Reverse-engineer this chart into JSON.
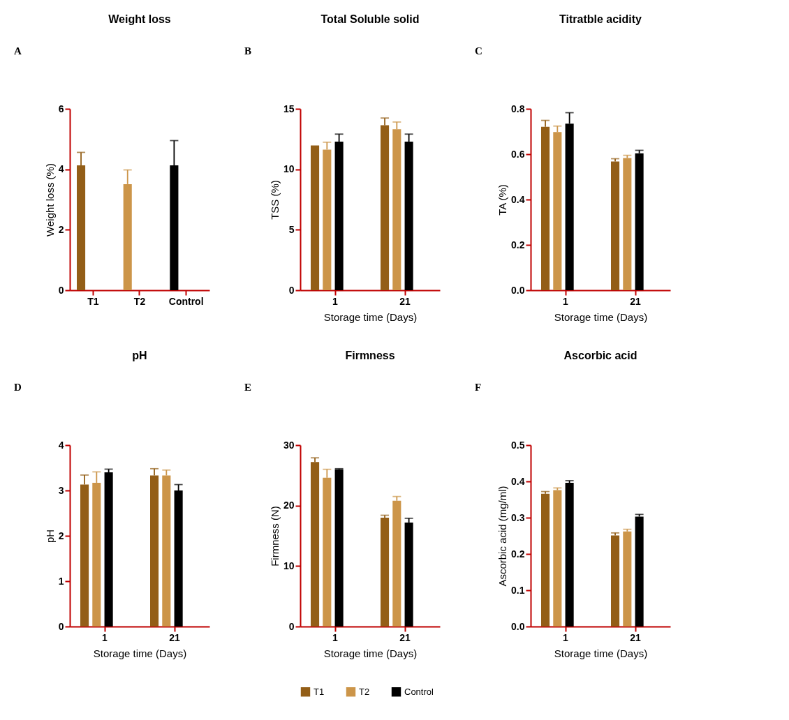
{
  "chart_data": [
    {
      "type": "bar",
      "title": "Weight loss",
      "ylabel": "Weight loss (%)",
      "annotations": [
        "A"
      ],
      "categories": [
        "T1",
        "T2",
        "Control"
      ],
      "values": [
        4.13,
        3.51,
        4.13
      ],
      "colors": [
        "#935e17",
        "#cc9549",
        "#000000"
      ],
      "errors": [
        [
          4.13,
          4.56
        ],
        [
          3.51,
          3.98
        ],
        [
          4.13,
          4.95
        ]
      ],
      "ylim": [
        0,
        6
      ],
      "yticks": [
        0,
        2,
        4,
        6
      ]
    },
    {
      "type": "bar",
      "title": "Total Soluble solid",
      "ylabel": "TSS (%)",
      "xlabel": "Storage time (Days)",
      "annotations": [
        "B"
      ],
      "categories": [
        "1",
        "21"
      ],
      "series": [
        {
          "color": "#935e17",
          "values": [
            11.97,
            13.65
          ],
          "errors": [
            null,
            [
              13.65,
              14.24
            ]
          ]
        },
        {
          "color": "#cc9549",
          "values": [
            11.63,
            13.31
          ],
          "errors": [
            [
              11.63,
              12.24
            ],
            [
              13.31,
              13.91
            ]
          ]
        },
        {
          "color": "#000000",
          "values": [
            12.29,
            12.29
          ],
          "errors": [
            [
              12.29,
              12.91
            ],
            [
              12.29,
              12.91
            ]
          ]
        }
      ],
      "ylim": [
        0,
        15
      ],
      "yticks": [
        0,
        5,
        10,
        15
      ]
    },
    {
      "type": "bar",
      "title": "Titratble acidity",
      "ylabel": "TA (%)",
      "xlabel": "Storage time (Days)",
      "annotations": [
        "C"
      ],
      "categories": [
        "1",
        "21"
      ],
      "series": [
        {
          "color": "#935e17",
          "values": [
            0.721,
            0.568
          ],
          "errors": [
            [
              0.721,
              0.749
            ],
            [
              0.568,
              0.58
            ]
          ]
        },
        {
          "color": "#cc9549",
          "values": [
            0.698,
            0.583
          ],
          "errors": [
            [
              0.698,
              0.724
            ],
            [
              0.583,
              0.595
            ]
          ]
        },
        {
          "color": "#000000",
          "values": [
            0.735,
            0.604
          ],
          "errors": [
            [
              0.735,
              0.783
            ],
            [
              0.604,
              0.617
            ]
          ]
        }
      ],
      "ylim": [
        0,
        0.8
      ],
      "yticks": [
        {
          "value": 0,
          "label": "0.0"
        },
        0.2,
        0.4,
        0.6,
        0.8
      ]
    },
    {
      "type": "bar",
      "title": "pH",
      "ylabel": "pH",
      "xlabel": "Storage time (Days)",
      "annotations": [
        "D"
      ],
      "categories": [
        "1",
        "21"
      ],
      "series": [
        {
          "color": "#935e17",
          "values": [
            3.13,
            3.33
          ],
          "errors": [
            [
              3.13,
              3.34
            ],
            [
              3.33,
              3.48
            ]
          ]
        },
        {
          "color": "#cc9549",
          "values": [
            3.17,
            3.33
          ],
          "errors": [
            [
              3.17,
              3.41
            ],
            [
              3.33,
              3.45
            ]
          ]
        },
        {
          "color": "#000000",
          "values": [
            3.4,
            3.0
          ],
          "errors": [
            [
              3.4,
              3.47
            ],
            [
              3.0,
              3.13
            ]
          ]
        }
      ],
      "ylim": [
        0,
        4
      ],
      "yticks": [
        0,
        1,
        2,
        3,
        4
      ]
    },
    {
      "type": "bar",
      "title": "Firmness",
      "ylabel": "Firmness (N)",
      "xlabel": "Storage time (Days)",
      "annotations": [
        "E"
      ],
      "categories": [
        "1",
        "21"
      ],
      "legend": "bottom",
      "series": [
        {
          "name": "T1",
          "color": "#935e17",
          "values": [
            27.2,
            18.0
          ],
          "errors": [
            [
              27.2,
              27.9
            ],
            [
              18.0,
              18.4
            ]
          ]
        },
        {
          "name": "T2",
          "color": "#cc9549",
          "values": [
            24.6,
            20.8
          ],
          "errors": [
            [
              24.6,
              26.0
            ],
            [
              20.8,
              21.5
            ]
          ]
        },
        {
          "name": "Control",
          "color": "#000000",
          "values": [
            26.0,
            17.2
          ],
          "errors": [
            [
              26.0,
              26.1
            ],
            [
              17.2,
              17.9
            ]
          ]
        }
      ],
      "ylim": [
        0,
        30
      ],
      "yticks": [
        0,
        10,
        20,
        30
      ]
    },
    {
      "type": "bar",
      "title": "Ascorbic acid",
      "ylabel": "Ascorbic acid (mg/ml)",
      "xlabel": "Storage time (Days)",
      "annotations": [
        "F"
      ],
      "categories": [
        "1",
        "21"
      ],
      "series": [
        {
          "color": "#935e17",
          "values": [
            0.366,
            0.251
          ],
          "errors": [
            [
              0.366,
              0.372
            ],
            [
              0.251,
              0.258
            ]
          ]
        },
        {
          "color": "#cc9549",
          "values": [
            0.376,
            0.262
          ],
          "errors": [
            [
              0.376,
              0.382
            ],
            [
              0.262,
              0.268
            ]
          ]
        },
        {
          "color": "#000000",
          "values": [
            0.396,
            0.303
          ],
          "errors": [
            [
              0.396,
              0.402
            ],
            [
              0.303,
              0.309
            ]
          ]
        }
      ],
      "ylim": [
        0,
        0.5
      ],
      "yticks": [
        {
          "value": 0,
          "label": "0.0"
        },
        0.1,
        0.2,
        0.3,
        0.4,
        0.5
      ]
    }
  ]
}
